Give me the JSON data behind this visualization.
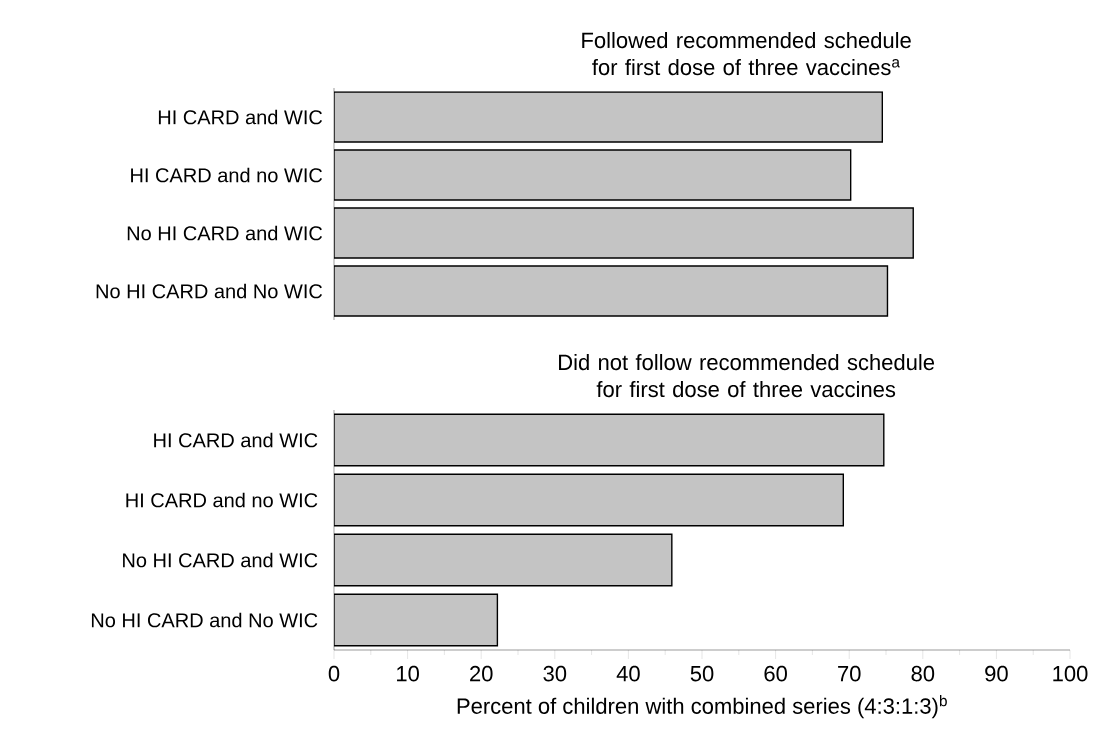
{
  "chart_data": [
    {
      "type": "bar",
      "orientation": "horizontal",
      "title": "Followed recommended schedule for first dose of three vaccines$^{a}$",
      "categories": [
        "HI CARD and WIC",
        "HI CARD and no WIC",
        "No HI CARD and WIC",
        "No HI CARD and No WIC"
      ],
      "values": [
        74.5,
        70.2,
        78.7,
        75.2
      ],
      "color": "#c4c4c4",
      "xlim": [
        0,
        100
      ],
      "tick_labels": "y"
    },
    {
      "type": "bar",
      "orientation": "horizontal",
      "title": "Did not follow recommended schedule for first dose of three vaccines",
      "categories": [
        "HI CARD and WIC",
        "HI CARD and no WIC",
        "No HI CARD and WIC",
        "No HI CARD and No WIC"
      ],
      "values": [
        74.7,
        69.2,
        45.9,
        22.2
      ],
      "color": "#c4c4c4",
      "xlim": [
        0,
        100
      ],
      "xticks": [
        0,
        10,
        20,
        30,
        40,
        50,
        60,
        70,
        80,
        90,
        100
      ],
      "xlabel": "Percent of children with combined series (4:3:1:3)$^{b}$"
    }
  ]
}
